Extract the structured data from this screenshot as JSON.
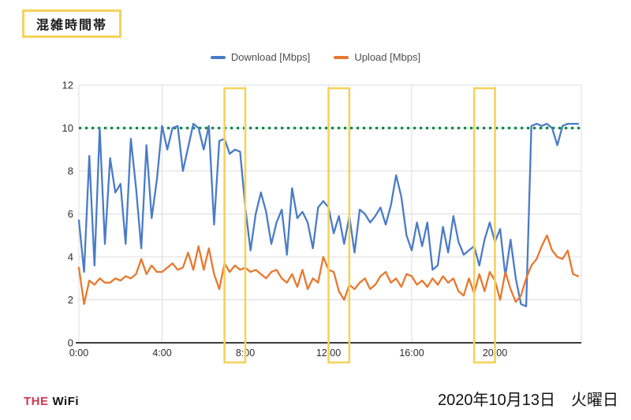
{
  "badge": {
    "label": "混雑時間帯"
  },
  "legend": {
    "items": [
      {
        "label": "Download [Mbps]",
        "color": "#4a7bc7"
      },
      {
        "label": "Upload [Mbps]",
        "color": "#e8782e"
      }
    ]
  },
  "footer": {
    "logo_the": "THE",
    "logo_wifi": "WiFi",
    "date": "2020年10月13日　火曜日"
  },
  "colors": {
    "download": "#4a7bc7",
    "upload": "#e8782e",
    "threshold": "#0c8a44",
    "highlight": "#f5d25c",
    "grid": "#dcdcdc",
    "axis": "#3c3c3c",
    "tick_text": "#2d2d2d",
    "logo_red": "#cf3854"
  },
  "chart_data": {
    "type": "line",
    "title": "",
    "xlabel": "",
    "ylabel": "",
    "x_start_hour": 0,
    "x_step_hours": 0.25,
    "x_end_hour": 24,
    "x_tick_hours": [
      0,
      4,
      8,
      12,
      16,
      20
    ],
    "x_tick_labels": [
      "0:00",
      "4:00",
      "8:00",
      "12:00",
      "16:00",
      "20:00"
    ],
    "ylim": [
      0,
      12
    ],
    "y_ticks": [
      0,
      2,
      4,
      6,
      8,
      10,
      12
    ],
    "grid": true,
    "legend_position": "top",
    "reference_line": {
      "value": 10,
      "style": "dotted",
      "color": "#0c8a44"
    },
    "highlight_bands": [
      {
        "from_hour": 7,
        "to_hour": 8
      },
      {
        "from_hour": 12,
        "to_hour": 13
      },
      {
        "from_hour": 19,
        "to_hour": 20
      }
    ],
    "series": [
      {
        "name": "Download [Mbps]",
        "color": "#4a7bc7",
        "values": [
          5.7,
          3.3,
          8.7,
          3.6,
          10.0,
          4.6,
          8.6,
          7.0,
          7.4,
          4.6,
          9.5,
          7.2,
          4.4,
          9.2,
          5.8,
          7.6,
          10.1,
          9.0,
          10.0,
          10.1,
          8.0,
          9.1,
          10.2,
          10.0,
          9.0,
          10.1,
          5.5,
          9.4,
          9.5,
          8.8,
          9.0,
          8.9,
          6.3,
          4.3,
          6.0,
          7.0,
          6.1,
          4.6,
          5.6,
          6.2,
          4.1,
          7.2,
          5.8,
          6.1,
          5.6,
          4.4,
          6.3,
          6.6,
          6.3,
          5.1,
          5.9,
          4.6,
          5.9,
          4.2,
          6.2,
          6.0,
          5.6,
          5.9,
          6.3,
          5.5,
          6.4,
          7.8,
          6.8,
          5.0,
          4.3,
          5.6,
          4.5,
          5.6,
          3.4,
          3.6,
          5.4,
          4.2,
          5.9,
          4.7,
          4.1,
          4.3,
          4.5,
          3.6,
          4.8,
          5.6,
          4.7,
          5.3,
          3.1,
          4.8,
          3.0,
          1.8,
          1.7,
          10.1,
          10.2,
          10.1,
          10.2,
          10.0,
          9.2,
          10.1,
          10.2,
          10.2,
          10.2
        ]
      },
      {
        "name": "Upload [Mbps]",
        "color": "#e8782e",
        "values": [
          3.5,
          1.8,
          2.9,
          2.7,
          3.0,
          2.8,
          2.8,
          3.0,
          2.9,
          3.1,
          3.0,
          3.2,
          3.9,
          3.2,
          3.6,
          3.3,
          3.3,
          3.5,
          3.7,
          3.4,
          3.5,
          4.2,
          3.4,
          4.5,
          3.4,
          4.4,
          3.2,
          2.5,
          3.7,
          3.3,
          3.6,
          3.4,
          3.5,
          3.3,
          3.4,
          3.2,
          3.0,
          3.3,
          3.4,
          3.0,
          2.8,
          3.2,
          2.6,
          3.4,
          2.5,
          3.0,
          2.8,
          4.0,
          3.4,
          3.3,
          2.4,
          2.0,
          2.7,
          2.5,
          2.8,
          3.0,
          2.5,
          2.7,
          3.1,
          3.3,
          2.8,
          3.0,
          2.6,
          3.2,
          3.1,
          2.7,
          2.9,
          2.6,
          3.0,
          2.7,
          3.1,
          2.8,
          3.0,
          2.4,
          2.2,
          3.0,
          2.3,
          3.2,
          2.4,
          3.3,
          2.9,
          2.0,
          3.3,
          2.5,
          1.9,
          2.2,
          3.0,
          3.6,
          3.9,
          4.5,
          5.0,
          4.3,
          4.0,
          3.9,
          4.3,
          3.2,
          3.1
        ]
      }
    ]
  }
}
